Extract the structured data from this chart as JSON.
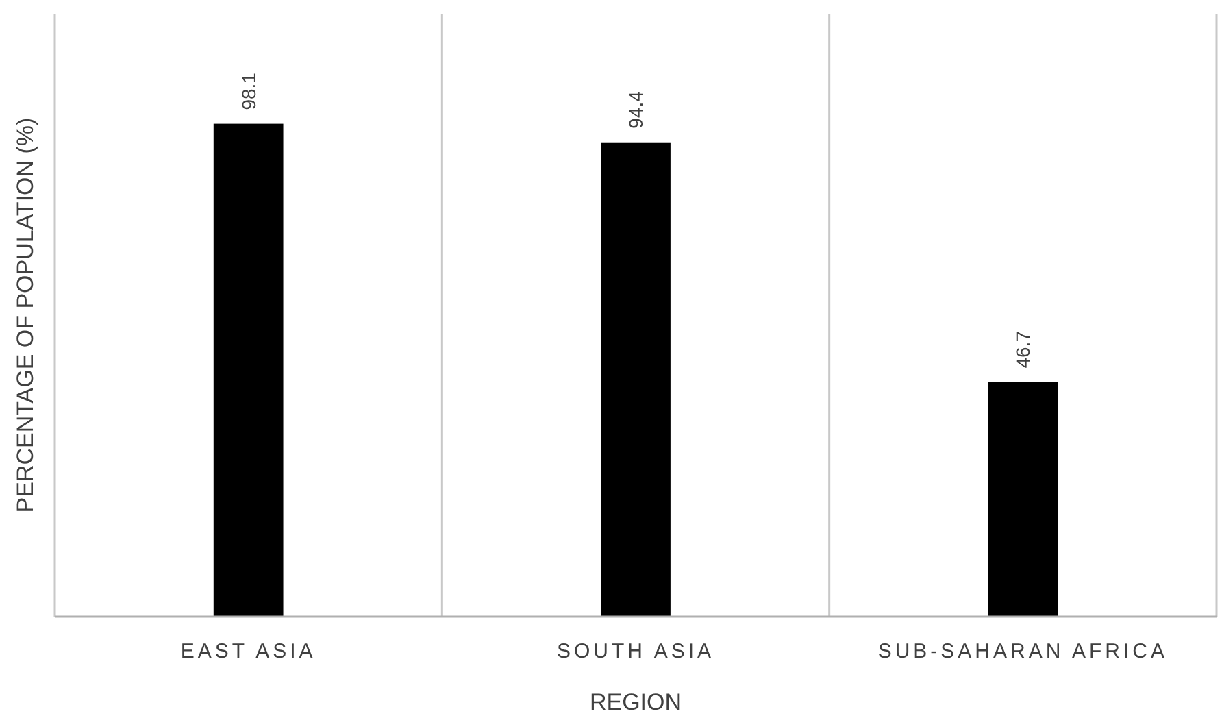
{
  "chart_data": {
    "type": "bar",
    "xlabel": "REGION",
    "ylabel": "PERCENTAGE OF POPULATION (%)",
    "categories": [
      "EAST ASIA",
      "SOUTH ASIA",
      "SUB-SAHARAN AFRICA"
    ],
    "values": [
      98.1,
      94.4,
      46.7
    ],
    "color": "#000000",
    "ylim": [
      0,
      120
    ],
    "data_labels": true,
    "grid": "x",
    "tick_labels": "x"
  }
}
